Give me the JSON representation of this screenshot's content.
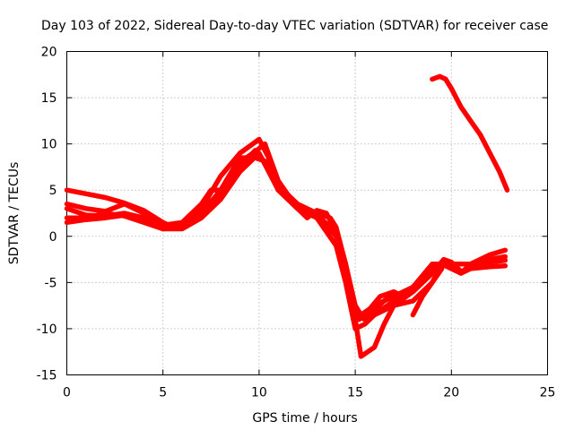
{
  "chart_data": {
    "type": "line",
    "title": "Day 103 of 2022, Sidereal Day-to-day VTEC variation (SDTVAR) for receiver case",
    "xlabel": "GPS time / hours",
    "ylabel": "SDTVAR / TECUs",
    "xlim": [
      0,
      25
    ],
    "ylim": [
      -15,
      20
    ],
    "xticks": [
      0,
      5,
      10,
      15,
      20,
      25
    ],
    "yticks": [
      -15,
      -10,
      -5,
      0,
      5,
      10,
      15,
      20
    ],
    "grid": true,
    "color": "#ff0000",
    "series": [
      {
        "name": "track-1",
        "points": [
          [
            0,
            5
          ],
          [
            1,
            4.6
          ],
          [
            2,
            4.2
          ],
          [
            3,
            3.6
          ],
          [
            4,
            2.8
          ],
          [
            5,
            1.5
          ],
          [
            5.5,
            1
          ],
          [
            6,
            1.5
          ],
          [
            7,
            3
          ],
          [
            8,
            6.5
          ],
          [
            9,
            9
          ],
          [
            10,
            10.5
          ],
          [
            10.5,
            8.5
          ],
          [
            11,
            5
          ],
          [
            12,
            3
          ],
          [
            13,
            2.5
          ],
          [
            13.7,
            2
          ],
          [
            14,
            1
          ],
          [
            14.5,
            -3
          ],
          [
            15,
            -7.5
          ],
          [
            15.3,
            -8.5
          ],
          [
            16,
            -7.5
          ],
          [
            17,
            -6.5
          ],
          [
            18,
            -5.5
          ],
          [
            19,
            -3.5
          ],
          [
            19.5,
            -3
          ],
          [
            20,
            -3.5
          ],
          [
            20.5,
            -4
          ],
          [
            21,
            -3
          ],
          [
            22,
            -2
          ],
          [
            22.8,
            -1.5
          ]
        ]
      },
      {
        "name": "track-2",
        "points": [
          [
            0,
            3.5
          ],
          [
            1,
            3
          ],
          [
            2,
            2.7
          ],
          [
            3,
            3.5
          ],
          [
            4,
            2.5
          ],
          [
            5,
            1.2
          ],
          [
            6,
            1.5
          ],
          [
            7,
            3.5
          ],
          [
            7.5,
            5
          ],
          [
            8,
            5
          ],
          [
            9,
            8
          ],
          [
            10,
            9.5
          ],
          [
            10.3,
            10
          ],
          [
            11,
            6
          ],
          [
            12,
            3
          ],
          [
            12.5,
            2
          ],
          [
            13,
            2.8
          ],
          [
            13.5,
            2.5
          ],
          [
            14,
            0.5
          ],
          [
            14.5,
            -3
          ],
          [
            15,
            -8
          ],
          [
            15.5,
            -9
          ],
          [
            16,
            -8.5
          ],
          [
            17,
            -7.5
          ],
          [
            18,
            -6
          ],
          [
            19,
            -4
          ],
          [
            19.6,
            -2.5
          ],
          [
            20,
            -2.8
          ],
          [
            20.5,
            -3.8
          ],
          [
            21,
            -3.5
          ],
          [
            22,
            -2.5
          ],
          [
            22.8,
            -2.2
          ]
        ]
      },
      {
        "name": "track-3",
        "points": [
          [
            0,
            3
          ],
          [
            1,
            2.3
          ],
          [
            2,
            2.2
          ],
          [
            3,
            2.5
          ],
          [
            4,
            2
          ],
          [
            5,
            1
          ],
          [
            6,
            1.2
          ],
          [
            7,
            2.5
          ],
          [
            8,
            5
          ],
          [
            9,
            8.5
          ],
          [
            9.8,
            8.5
          ],
          [
            10.5,
            8
          ],
          [
            11,
            5.5
          ],
          [
            12,
            3.5
          ],
          [
            13,
            2.5
          ],
          [
            14,
            0
          ],
          [
            14.5,
            -4
          ],
          [
            15,
            -9
          ],
          [
            15.3,
            -13
          ],
          [
            16,
            -12
          ],
          [
            16.5,
            -9.5
          ],
          [
            17,
            -7.5
          ],
          [
            18,
            -7
          ],
          [
            19,
            -5
          ],
          [
            19.5,
            -3
          ],
          [
            20,
            -3
          ],
          [
            21,
            -3
          ],
          [
            22,
            -2.8
          ],
          [
            22.8,
            -2.6
          ]
        ]
      },
      {
        "name": "track-4",
        "points": [
          [
            0,
            2
          ],
          [
            1,
            2
          ],
          [
            2,
            2.5
          ],
          [
            3,
            2.2
          ],
          [
            4,
            1.5
          ],
          [
            5,
            0.8
          ],
          [
            6,
            0.8
          ],
          [
            7,
            2
          ],
          [
            8,
            4
          ],
          [
            9,
            7
          ],
          [
            10,
            9
          ],
          [
            11,
            5
          ],
          [
            12,
            3
          ],
          [
            13,
            2
          ],
          [
            14,
            -1
          ],
          [
            14.5,
            -5
          ],
          [
            15,
            -10
          ],
          [
            15.5,
            -9.5
          ],
          [
            16,
            -8.5
          ],
          [
            17,
            -7
          ],
          [
            18,
            -5.5
          ],
          [
            19,
            -3
          ],
          [
            19.5,
            -3
          ],
          [
            20,
            -3.5
          ],
          [
            20.5,
            -4
          ],
          [
            21,
            -3.5
          ],
          [
            22,
            -3.3
          ],
          [
            22.8,
            -3.2
          ]
        ]
      },
      {
        "name": "track-5",
        "points": [
          [
            0,
            1.5
          ],
          [
            1,
            1.8
          ],
          [
            2,
            2
          ],
          [
            3,
            2.3
          ],
          [
            4,
            1.8
          ],
          [
            5,
            0.8
          ],
          [
            6,
            1
          ],
          [
            7,
            2.2
          ],
          [
            8,
            4.5
          ],
          [
            9,
            7.5
          ],
          [
            9.8,
            9.3
          ],
          [
            10.5,
            7.5
          ],
          [
            11,
            5
          ],
          [
            12,
            3
          ],
          [
            13,
            2.3
          ],
          [
            14,
            0.5
          ],
          [
            14.5,
            -3.5
          ],
          [
            15,
            -8.5
          ],
          [
            15.5,
            -9
          ],
          [
            16,
            -8
          ],
          [
            17,
            -6
          ],
          [
            17.5,
            -6.5
          ],
          [
            18,
            -6
          ],
          [
            19,
            -4
          ],
          [
            19.5,
            -3
          ]
        ]
      },
      {
        "name": "track-6",
        "points": [
          [
            18,
            -8.5
          ],
          [
            18.5,
            -6.5
          ],
          [
            19,
            -5
          ],
          [
            19.5,
            -3.5
          ]
        ]
      },
      {
        "name": "track-7",
        "points": [
          [
            15.2,
            -9
          ],
          [
            15.7,
            -8
          ],
          [
            16.3,
            -6.5
          ],
          [
            17,
            -6
          ]
        ]
      },
      {
        "name": "track-8",
        "points": [
          [
            19,
            17
          ],
          [
            19.4,
            17.3
          ],
          [
            19.7,
            17
          ],
          [
            20,
            16
          ],
          [
            20.5,
            14
          ],
          [
            21,
            12.5
          ],
          [
            21.5,
            11
          ],
          [
            22,
            9
          ],
          [
            22.5,
            7
          ],
          [
            22.9,
            5
          ]
        ]
      }
    ]
  }
}
